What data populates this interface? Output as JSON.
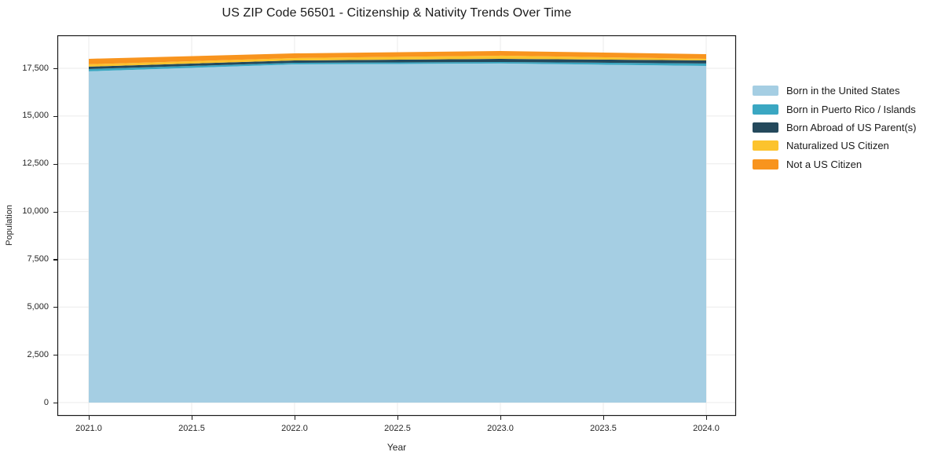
{
  "title": "US ZIP Code 56501 - Citizenship & Nativity Trends Over Time",
  "chart_data": {
    "type": "area",
    "stacked": true,
    "title": "US ZIP Code 56501 - Citizenship & Nativity Trends Over Time",
    "xlabel": "Year",
    "ylabel": "Population",
    "x": [
      2021,
      2022,
      2023,
      2024
    ],
    "series": [
      {
        "name": "Born in the United States",
        "color": "#a5cee3",
        "values": [
          17340,
          17705,
          17750,
          17625
        ]
      },
      {
        "name": "Born in Puerto Rico / Islands",
        "color": "#3aa7c2",
        "values": [
          120,
          80,
          80,
          125
        ]
      },
      {
        "name": "Born Abroad of US Parent(s)",
        "color": "#24495c",
        "values": [
          125,
          125,
          165,
          165
        ]
      },
      {
        "name": "Naturalized US Citizen",
        "color": "#fcc32d",
        "values": [
          125,
          125,
          165,
          80
        ]
      },
      {
        "name": "Not a US Citizen",
        "color": "#f8941e",
        "values": [
          285,
          245,
          245,
          245
        ]
      }
    ],
    "totals": [
      17995,
      18280,
      18405,
      18240
    ],
    "x_ticks": [
      "2021.0",
      "2021.5",
      "2022.0",
      "2022.5",
      "2023.0",
      "2023.5",
      "2024.0"
    ],
    "y_ticks": [
      "0",
      "2,500",
      "5,000",
      "7,500",
      "10,000",
      "12,500",
      "15,000",
      "17,500"
    ],
    "xlim": [
      2020.85,
      2024.15
    ],
    "ylim": [
      -700,
      19230
    ],
    "grid": true,
    "legend_position": "right-outside"
  },
  "colors": {
    "background": "#ffffff",
    "grid": "#ebebeb",
    "frame": "#1a1a1a",
    "tick_text": "#262626"
  }
}
